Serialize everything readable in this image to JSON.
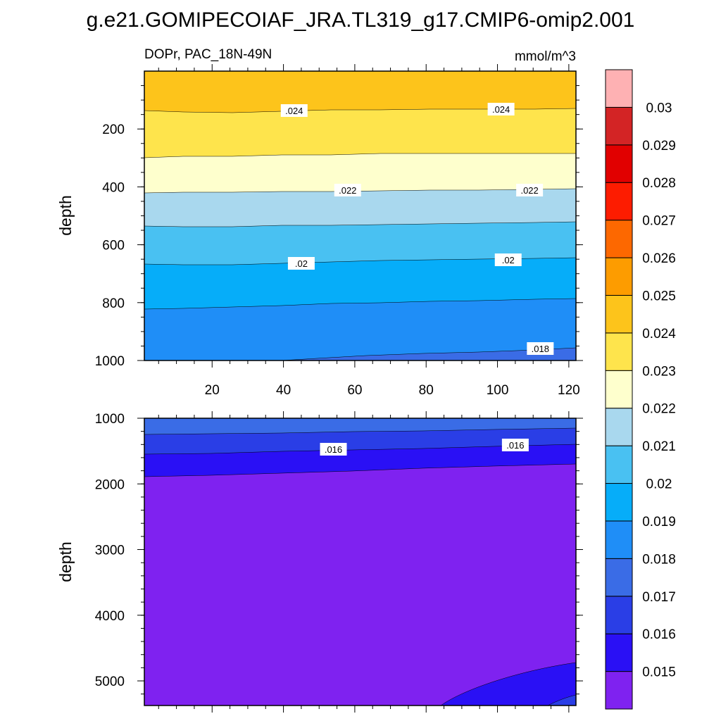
{
  "chart_data": [
    {
      "type": "heatmap",
      "subtype": "filled-contour",
      "title": "g.e21.GOMIPECOIAF_JRA.TL319_g17.CMIP6-omip2.001",
      "left_string": "DOPr, PAC_18N-49N",
      "right_string": "mmol/m^3",
      "ylabel": "depth",
      "y_reversed": true,
      "ylim": [
        1000,
        0
      ],
      "xlim": [
        1,
        122
      ],
      "yticks": [
        "200",
        "400",
        "600",
        "800",
        "1000"
      ],
      "xticks": [
        "20",
        "40",
        "60",
        "80",
        "100",
        "120"
      ],
      "contour_line_labels": [
        ".024",
        ".024",
        ".022",
        ".022",
        ".02",
        ".02",
        ".018"
      ],
      "band_boundaries_depth": [
        {
          "level": 0.0245,
          "depth_at_x_start": 150,
          "depth_at_x_end": 135
        },
        {
          "level": 0.0235,
          "depth_at_x_start": 300,
          "depth_at_x_end": 290
        },
        {
          "level": 0.0225,
          "depth_at_x_start": 420,
          "depth_at_x_end": 405
        },
        {
          "level": 0.0215,
          "depth_at_x_start": 540,
          "depth_at_x_end": 525
        },
        {
          "level": 0.0205,
          "depth_at_x_start": 670,
          "depth_at_x_end": 650
        },
        {
          "level": 0.0195,
          "depth_at_x_start": 825,
          "depth_at_x_end": 790
        },
        {
          "level": 0.0185,
          "depth_at_x_start": 1000,
          "depth_at_x_end": 955
        }
      ]
    },
    {
      "type": "heatmap",
      "subtype": "filled-contour",
      "ylabel": "depth",
      "y_reversed": true,
      "ylim": [
        5375,
        1000
      ],
      "xlim": [
        1,
        122
      ],
      "yticks": [
        "1000",
        "2000",
        "3000",
        "4000",
        "5000"
      ],
      "contour_line_labels": [
        ".016",
        ".016"
      ],
      "band_boundaries_depth": [
        {
          "level": 0.0175,
          "depth_at_x_start": 1250,
          "depth_at_x_end": 1150
        },
        {
          "level": 0.0165,
          "depth_at_x_start": 1520,
          "depth_at_x_end": 1400
        },
        {
          "level": 0.0155,
          "depth_at_x_start": 1880,
          "depth_at_x_end": 1700
        }
      ],
      "deep_feature": {
        "level": 0.0145,
        "region": "bottom-right, below ~4700 m, x > 85"
      }
    }
  ],
  "colorbar": {
    "labels": [
      "0.015",
      "0.016",
      "0.017",
      "0.018",
      "0.019",
      "0.02",
      "0.021",
      "0.022",
      "0.023",
      "0.024",
      "0.025",
      "0.026",
      "0.027",
      "0.028",
      "0.029",
      "0.03"
    ],
    "colors_bottom_to_top": [
      "#7f22f0",
      "#2a10f5",
      "#2a3ee6",
      "#3a6ce6",
      "#1f8ef7",
      "#06adf9",
      "#49c1f2",
      "#a9d8ee",
      "#feffcd",
      "#fee44c",
      "#fdc41b",
      "#fd9c00",
      "#fd6800",
      "#fd1c00",
      "#e10000",
      "#d32425",
      "#feb1b3"
    ]
  }
}
